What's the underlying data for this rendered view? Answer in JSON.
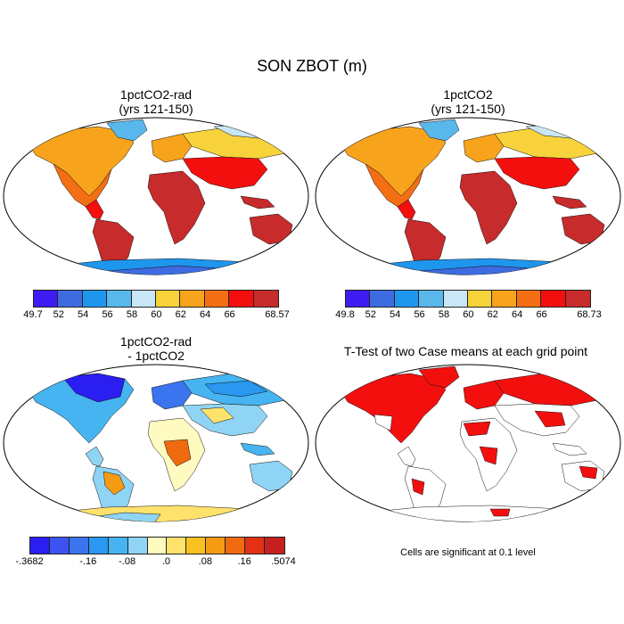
{
  "title": "SON ZBOT (m)",
  "panels": [
    {
      "id": "exp",
      "title_line1": "1pctCO2-rad",
      "title_line2": "(yrs 121-150)",
      "colorbar": {
        "colors": [
          "#3f1cf2",
          "#3f6be0",
          "#1f96ee",
          "#58b8ec",
          "#c8e6f5",
          "#f8d23a",
          "#f7a31c",
          "#f46e14",
          "#f40f0f",
          "#c72b2b"
        ],
        "labels": [
          "49.7",
          "52",
          "54",
          "56",
          "58",
          "60",
          "62",
          "64",
          "66",
          "68.57"
        ]
      }
    },
    {
      "id": "ctrl",
      "title_line1": "1pctCO2",
      "title_line2": "(yrs 121-150)",
      "colorbar": {
        "colors": [
          "#3f1cf2",
          "#3f6be0",
          "#1f96ee",
          "#58b8ec",
          "#c8e6f5",
          "#f8d23a",
          "#f7a31c",
          "#f46e14",
          "#f40f0f",
          "#c72b2b"
        ],
        "labels": [
          "49.8",
          "52",
          "54",
          "56",
          "58",
          "60",
          "62",
          "64",
          "66",
          "68.73"
        ]
      }
    },
    {
      "id": "diff",
      "title_line1": "1pctCO2-rad",
      "title_line2": "- 1pctCO2",
      "colorbar": {
        "colors": [
          "#2b1ef0",
          "#3c53f2",
          "#3a74ee",
          "#2a97f0",
          "#45b4f0",
          "#8fd4f4",
          "#fffbc0",
          "#ffe26c",
          "#f8c020",
          "#f59b13",
          "#f06a0f",
          "#e43015",
          "#c72020"
        ],
        "labels": [
          "-.3682",
          "-.16",
          "-.08",
          ".0",
          ".08",
          ".16",
          ".5074"
        ]
      }
    },
    {
      "id": "ttest",
      "title_line1": "T-Test of two Case means at each grid point",
      "note": "Cells are significant at 0.1 level"
    }
  ]
}
